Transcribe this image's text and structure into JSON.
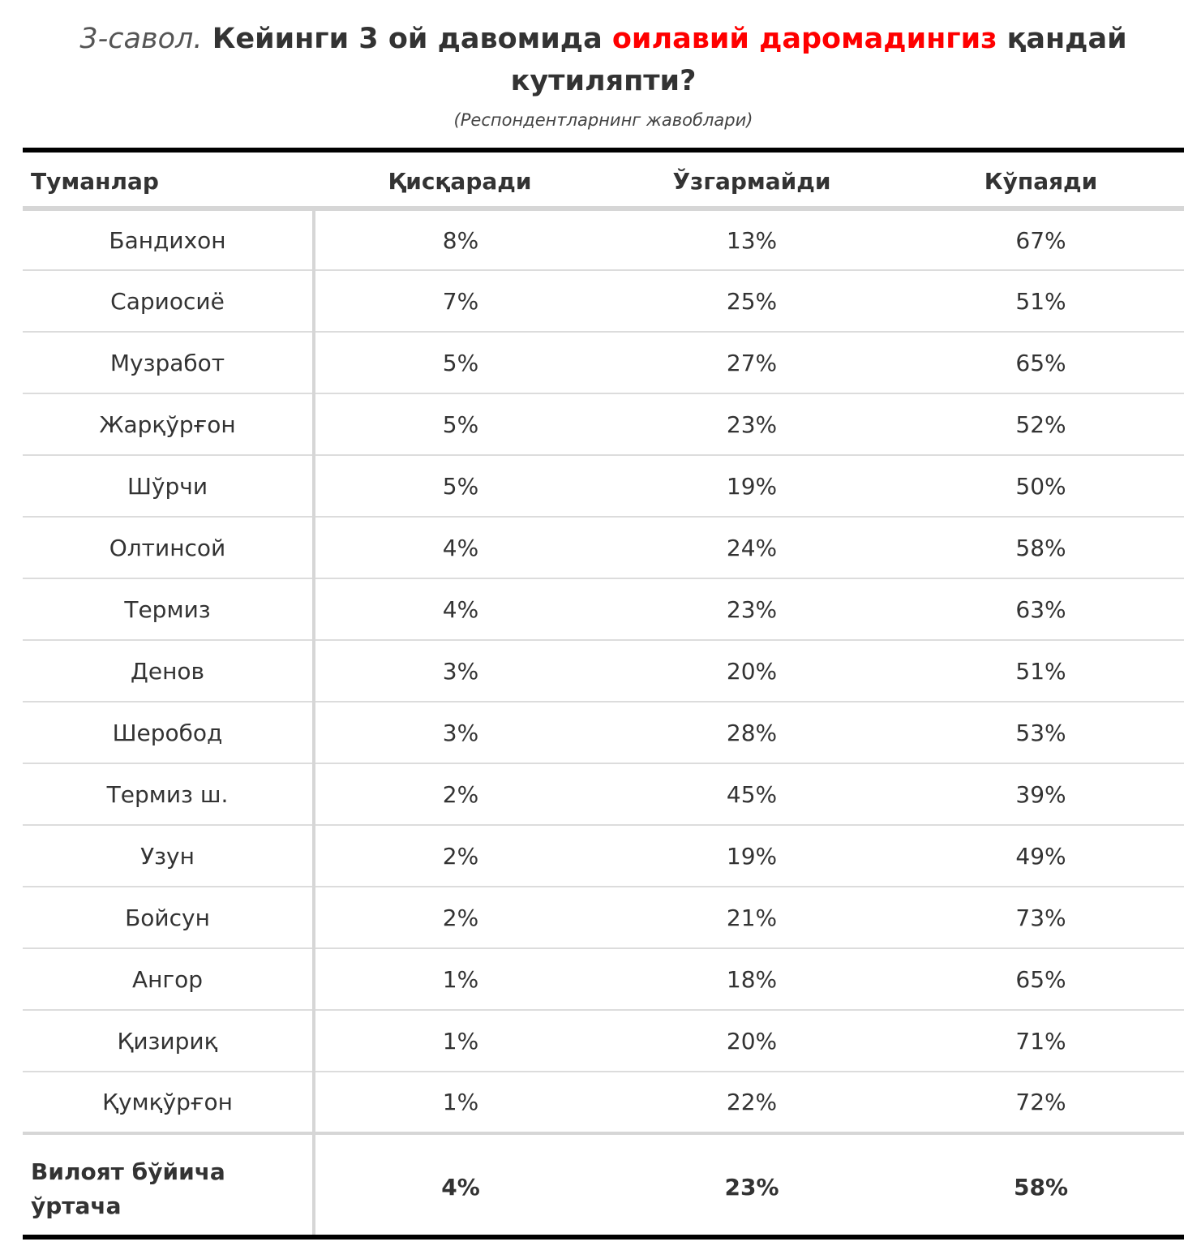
{
  "title": {
    "prefix": "3-савол.",
    "part1": "Кейинги 3 ой давомида",
    "highlight": "оилавий даромадингиз",
    "part2": "қандай кутиляпти?",
    "subtitle": "(Респондентларнинг жавоблари)",
    "highlight_color": "#ff0000"
  },
  "chart_data": {
    "type": "table",
    "columns": [
      "Туманлар",
      "Қисқаради",
      "Ўзгармайди",
      "Кўпаяди"
    ],
    "rows": [
      [
        "Бандихон",
        "8%",
        "13%",
        "67%"
      ],
      [
        "Сариосиё",
        "7%",
        "25%",
        "51%"
      ],
      [
        "Музработ",
        "5%",
        "27%",
        "65%"
      ],
      [
        "Жарқўрғон",
        "5%",
        "23%",
        "52%"
      ],
      [
        "Шўрчи",
        "5%",
        "19%",
        "50%"
      ],
      [
        "Олтинсой",
        "4%",
        "24%",
        "58%"
      ],
      [
        "Термиз",
        "4%",
        "23%",
        "63%"
      ],
      [
        "Денов",
        "3%",
        "20%",
        "51%"
      ],
      [
        "Шеробод",
        "3%",
        "28%",
        "53%"
      ],
      [
        "Термиз ш.",
        "2%",
        "45%",
        "39%"
      ],
      [
        "Узун",
        "2%",
        "19%",
        "49%"
      ],
      [
        "Бойсун",
        "2%",
        "21%",
        "73%"
      ],
      [
        "Ангор",
        "1%",
        "18%",
        "65%"
      ],
      [
        "Қизириқ",
        "1%",
        "20%",
        "71%"
      ],
      [
        "Қумқўрғон",
        "1%",
        "22%",
        "72%"
      ]
    ],
    "average": [
      "Вилоят бўйича ўртача",
      "4%",
      "23%",
      "58%"
    ]
  }
}
